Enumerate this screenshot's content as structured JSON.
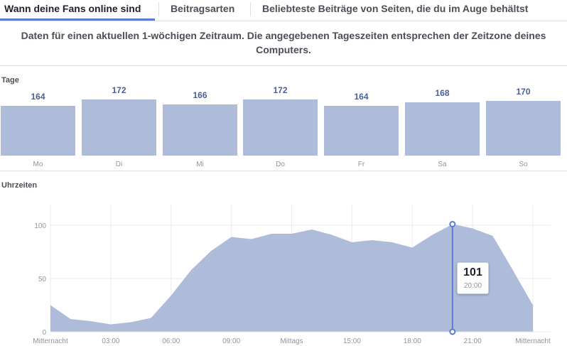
{
  "tabs": [
    {
      "label": "Wann deine Fans online sind",
      "active": true
    },
    {
      "label": "Beitragsarten",
      "active": false
    },
    {
      "label": "Beliebteste Beiträge von Seiten, die du im Auge behältst",
      "active": false
    }
  ],
  "notice": "Daten für einen aktuellen 1-wöchigen Zeitraum. Die angegebenen Tageszeiten entsprechen der Zeitzone deines Computers.",
  "colors": {
    "bar": "#afbcd9",
    "accent": "#5b7bd5",
    "value_text": "#4a6099"
  },
  "chart_data": [
    {
      "type": "bar",
      "title": "Tage",
      "categories": [
        "Mo",
        "Di",
        "Mi",
        "Do",
        "Fr",
        "Sa",
        "So"
      ],
      "values": [
        164,
        172,
        166,
        172,
        164,
        168,
        170
      ]
    },
    {
      "type": "area",
      "title": "Uhrzeiten",
      "x_tick_labels": [
        "Mitternacht",
        "03:00",
        "06:00",
        "09:00",
        "Mittags",
        "15:00",
        "18:00",
        "21:00",
        "Mitternacht"
      ],
      "y_ticks": [
        0,
        50,
        100
      ],
      "ylim": [
        0,
        120
      ],
      "x_hours": [
        0,
        1,
        2,
        3,
        4,
        5,
        6,
        7,
        8,
        9,
        10,
        11,
        12,
        13,
        14,
        15,
        16,
        17,
        18,
        19,
        20,
        21,
        22,
        23,
        24
      ],
      "values": [
        25,
        12,
        10,
        7,
        9,
        13,
        34,
        58,
        76,
        89,
        87,
        92,
        92,
        96,
        91,
        84,
        86,
        84,
        79,
        91,
        101,
        97,
        90,
        58,
        25
      ],
      "highlight": {
        "x_hour": 20,
        "value": "101",
        "label": "20:00"
      },
      "grid": true
    }
  ]
}
